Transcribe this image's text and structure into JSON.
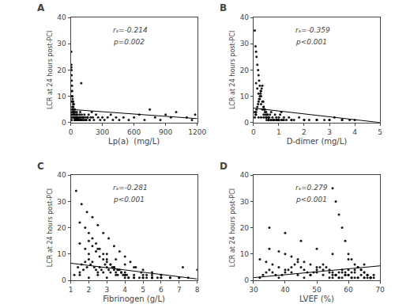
{
  "chart_data": [
    {
      "type": "scatter",
      "label": "A",
      "xlabel": "Lp(a)  (mg/L)",
      "ylabel": "LCR at 24 hours post-PCI",
      "annotations": [
        "rₛ=-0.214",
        "p=0.002"
      ],
      "xlim": [
        0,
        1200
      ],
      "ylim": [
        0,
        40
      ],
      "xticks": [
        0,
        300,
        600,
        900,
        1200
      ],
      "yticks": [
        0,
        10,
        20,
        30,
        40
      ],
      "grid": false,
      "series": [
        {
          "type": "scatter",
          "color": "black",
          "x": [
            5,
            8,
            10,
            12,
            15,
            18,
            20,
            22,
            25,
            28,
            30,
            32,
            35,
            38,
            40,
            42,
            45,
            48,
            50,
            52,
            55,
            58,
            60,
            62,
            65,
            70,
            75,
            80,
            85,
            90,
            95,
            100,
            105,
            110,
            115,
            120,
            125,
            130,
            140,
            150,
            160,
            170,
            180,
            190,
            200,
            210,
            220,
            240,
            260,
            280,
            300,
            320,
            350,
            380,
            400,
            430,
            460,
            500,
            550,
            600,
            650,
            700,
            750,
            800,
            850,
            900,
            950,
            1000,
            1100,
            1150,
            1180,
            5,
            6,
            7,
            8,
            9,
            10,
            12,
            14,
            16,
            18,
            20,
            22,
            24,
            26,
            28,
            30,
            35,
            40,
            45,
            50,
            55,
            60,
            70,
            80,
            90,
            100,
            5,
            8,
            10,
            15,
            20,
            25,
            30,
            35,
            40,
            50,
            60,
            70,
            80,
            90,
            100,
            120,
            140,
            160,
            180
          ],
          "values": [
            2,
            3,
            1,
            4,
            5,
            2,
            3,
            8,
            6,
            4,
            7,
            2,
            3,
            1,
            5,
            4,
            2,
            3,
            1,
            2,
            3,
            4,
            2,
            1,
            3,
            2,
            1,
            2,
            3,
            4,
            2,
            1,
            3,
            2,
            1,
            2,
            1,
            3,
            2,
            1,
            2,
            3,
            1,
            2,
            4,
            2,
            1,
            3,
            2,
            1,
            2,
            1,
            2,
            3,
            1,
            2,
            1,
            2,
            1,
            2,
            3,
            1,
            5,
            2,
            1,
            3,
            2,
            4,
            2,
            1,
            3,
            27,
            22,
            21,
            20,
            18,
            16,
            14,
            12,
            10,
            9,
            8,
            7,
            6,
            5,
            4,
            3,
            2,
            1,
            2,
            1,
            1,
            2,
            1,
            2,
            1,
            15,
            12,
            10,
            8,
            6,
            5,
            4,
            3,
            2,
            1,
            2,
            1,
            2,
            1,
            2,
            1,
            2,
            1,
            2,
            1
          ]
        },
        {
          "type": "line",
          "color": "black",
          "x": [
            0,
            1200
          ],
          "values": [
            5.0,
            1.5
          ]
        }
      ]
    },
    {
      "type": "scatter",
      "label": "B",
      "xlabel": "D-dimer (mg/L)",
      "ylabel": "LCR at 24 hours post-PCI",
      "annotations": [
        "rₛ=-0.359",
        "p<0.001"
      ],
      "xlim": [
        0,
        5
      ],
      "ylim": [
        0,
        40
      ],
      "xticks": [
        0,
        1,
        2,
        3,
        4,
        5
      ],
      "yticks": [
        0,
        10,
        20,
        30,
        40
      ],
      "grid": false,
      "series": [
        {
          "type": "scatter",
          "color": "black",
          "x": [
            0.05,
            0.08,
            0.1,
            0.12,
            0.15,
            0.18,
            0.2,
            0.22,
            0.25,
            0.28,
            0.3,
            0.32,
            0.35,
            0.38,
            0.4,
            0.42,
            0.45,
            0.48,
            0.5,
            0.52,
            0.55,
            0.58,
            0.6,
            0.62,
            0.65,
            0.7,
            0.75,
            0.8,
            0.85,
            0.9,
            0.95,
            1.0,
            1.05,
            1.1,
            1.15,
            1.2,
            1.3,
            1.4,
            1.5,
            1.6,
            1.8,
            2.0,
            2.2,
            2.5,
            2.8,
            3.0,
            3.2,
            3.5,
            3.8,
            4.0,
            0.05,
            0.08,
            0.1,
            0.12,
            0.15,
            0.18,
            0.2,
            0.22,
            0.25,
            0.28,
            0.3,
            0.35,
            0.4,
            0.45,
            0.5,
            0.55,
            0.6,
            0.7,
            0.8,
            0.9,
            1.0,
            0.1,
            0.15,
            0.2,
            0.25,
            0.3,
            0.35,
            0.4,
            0.5,
            0.6,
            0.7,
            0.8,
            0.9,
            1.0,
            1.1,
            0.05,
            0.1,
            0.2,
            0.3,
            0.4,
            0.5,
            0.6,
            0.8,
            1.0,
            1.2,
            1.5,
            2.0,
            2.5,
            3.0,
            3.5
          ],
          "values": [
            2,
            3,
            4,
            5,
            6,
            7,
            8,
            9,
            10,
            11,
            12,
            13,
            14,
            8,
            6,
            5,
            4,
            3,
            2,
            1,
            3,
            2,
            1,
            2,
            3,
            4,
            2,
            1,
            3,
            2,
            1,
            2,
            3,
            4,
            1,
            2,
            1,
            2,
            1,
            1,
            2,
            1,
            1,
            1,
            1,
            1,
            2,
            1,
            1,
            1,
            35,
            29,
            27,
            25,
            22,
            20,
            18,
            16,
            14,
            12,
            10,
            8,
            6,
            5,
            4,
            3,
            2,
            1,
            1,
            1,
            1,
            15,
            13,
            11,
            9,
            7,
            5,
            3,
            2,
            1,
            1,
            1,
            1,
            1,
            1,
            4,
            3,
            2,
            2,
            2,
            2,
            1,
            1,
            1,
            1,
            1,
            1,
            1,
            1,
            1
          ]
        },
        {
          "type": "line",
          "color": "black",
          "x": [
            0,
            5
          ],
          "values": [
            5.5,
            0.0
          ]
        }
      ]
    },
    {
      "type": "scatter",
      "label": "C",
      "xlabel": "Fibrinogen (g/L)",
      "ylabel": "LCR at 24 hours post-PCI",
      "annotations": [
        "rₛ=-0.281",
        "p<0.001"
      ],
      "xlim": [
        1,
        8
      ],
      "ylim": [
        0,
        40
      ],
      "xticks": [
        1,
        2,
        3,
        4,
        5,
        6,
        7,
        8
      ],
      "yticks": [
        0,
        10,
        20,
        30,
        40
      ],
      "grid": false,
      "series": [
        {
          "type": "scatter",
          "color": "black",
          "x": [
            1.2,
            1.4,
            1.5,
            1.6,
            1.7,
            1.8,
            1.9,
            2.0,
            2.1,
            2.2,
            2.3,
            2.4,
            2.5,
            2.6,
            2.7,
            2.8,
            2.9,
            3.0,
            3.1,
            3.2,
            3.3,
            3.4,
            3.5,
            3.6,
            3.7,
            3.8,
            3.9,
            4.0,
            4.1,
            4.2,
            4.5,
            4.8,
            5.0,
            5.2,
            5.5,
            5.8,
            6.0,
            6.5,
            7.0,
            7.2,
            1.5,
            1.8,
            2.0,
            2.2,
            2.4,
            2.6,
            2.8,
            3.0,
            3.2,
            3.4,
            3.6,
            3.8,
            4.0,
            4.2,
            4.5,
            5.0,
            5.5,
            1.5,
            1.8,
            2.0,
            2.2,
            2.4,
            2.6,
            2.8,
            3.0,
            3.2,
            3.4,
            3.6,
            3.8,
            4.0,
            1.3,
            1.6,
            1.9,
            2.2,
            2.5,
            2.8,
            3.1,
            3.4,
            3.7,
            4.0,
            4.3,
            4.6,
            4.9,
            5.2,
            5.5,
            1.5,
            2.0,
            2.5,
            3.0,
            3.5,
            4.0,
            4.5,
            5.0,
            5.5,
            6.0,
            6.5,
            7.0,
            7.5,
            8.0,
            2.0,
            2.5,
            3.0,
            3.5,
            4.0,
            4.5,
            5.0,
            5.5,
            6.0
          ],
          "values": [
            2,
            5,
            3,
            6,
            4,
            7,
            5,
            8,
            6,
            7,
            5,
            4,
            3,
            5,
            4,
            3,
            6,
            5,
            4,
            3,
            5,
            4,
            3,
            2,
            4,
            3,
            2,
            3,
            2,
            1,
            2,
            1,
            2,
            1,
            2,
            1,
            1,
            1,
            1,
            5,
            14,
            12,
            10,
            13,
            11,
            9,
            8,
            7,
            6,
            5,
            4,
            3,
            2,
            1,
            1,
            1,
            1,
            22,
            20,
            18,
            16,
            14,
            12,
            10,
            8,
            6,
            5,
            4,
            3,
            2,
            34,
            29,
            26,
            24,
            21,
            18,
            16,
            13,
            11,
            9,
            7,
            5,
            3,
            2,
            1,
            2,
            1,
            2,
            1,
            2,
            1,
            1,
            1,
            1,
            1,
            1,
            1,
            1,
            4,
            15,
            12,
            10,
            8,
            6,
            5,
            4,
            3,
            2
          ]
        },
        {
          "type": "line",
          "color": "black",
          "x": [
            1,
            8
          ],
          "values": [
            6.5,
            0.5
          ]
        }
      ]
    },
    {
      "type": "scatter",
      "label": "D",
      "xlabel": "LVEF (%)",
      "ylabel": "LCR at 24 hours post-PCI",
      "annotations": [
        "rₛ=0.279",
        "p<0.001"
      ],
      "xlim": [
        30,
        70
      ],
      "ylim": [
        0,
        40
      ],
      "xticks": [
        30,
        40,
        50,
        60,
        70
      ],
      "yticks": [
        0,
        10,
        20,
        30,
        40
      ],
      "grid": false,
      "series": [
        {
          "type": "scatter",
          "color": "black",
          "x": [
            32,
            33,
            34,
            35,
            36,
            37,
            38,
            39,
            40,
            41,
            42,
            43,
            44,
            45,
            46,
            47,
            48,
            49,
            50,
            51,
            52,
            53,
            54,
            55,
            56,
            57,
            58,
            59,
            60,
            61,
            62,
            63,
            64,
            65,
            66,
            67,
            68,
            32,
            34,
            36,
            38,
            40,
            42,
            44,
            46,
            48,
            50,
            52,
            54,
            56,
            58,
            60,
            62,
            64,
            66,
            35,
            38,
            40,
            42,
            44,
            46,
            48,
            50,
            52,
            54,
            56,
            58,
            60,
            62,
            35,
            40,
            45,
            50,
            55,
            60,
            65,
            55,
            56,
            57,
            58,
            59,
            60,
            61,
            62,
            63,
            64,
            65,
            66,
            67,
            68,
            55,
            57,
            59,
            61,
            63,
            65,
            67,
            55,
            57,
            59,
            61,
            63,
            65,
            67
          ],
          "values": [
            1,
            2,
            3,
            4,
            3,
            2,
            1,
            2,
            3,
            4,
            5,
            6,
            7,
            5,
            4,
            3,
            2,
            3,
            4,
            5,
            6,
            5,
            4,
            3,
            2,
            3,
            4,
            3,
            2,
            3,
            4,
            5,
            4,
            3,
            2,
            1,
            2,
            8,
            7,
            6,
            5,
            4,
            3,
            2,
            1,
            2,
            3,
            2,
            1,
            2,
            3,
            4,
            3,
            2,
            1,
            12,
            11,
            10,
            9,
            8,
            7,
            6,
            5,
            4,
            3,
            2,
            1,
            2,
            1,
            20,
            18,
            15,
            12,
            10,
            8,
            6,
            35,
            30,
            25,
            20,
            15,
            10,
            8,
            6,
            5,
            4,
            3,
            2,
            1,
            1,
            2,
            1,
            2,
            1,
            1,
            1,
            1,
            1,
            1,
            2,
            1,
            1,
            1,
            1
          ]
        },
        {
          "type": "line",
          "color": "black",
          "x": [
            30,
            70
          ],
          "values": [
            1.0,
            5.5
          ]
        }
      ]
    }
  ]
}
